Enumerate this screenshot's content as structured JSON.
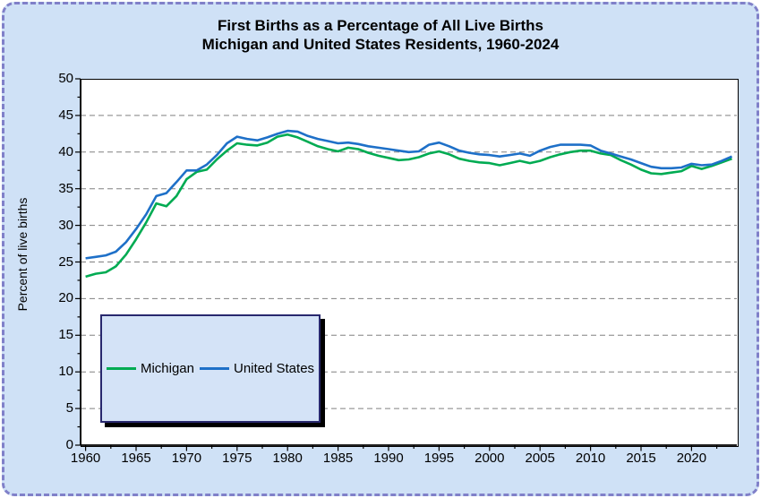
{
  "window": {
    "background_color": "#cfe1f6",
    "frame_border_color": "#8080c9",
    "plot_background": "#ffffff",
    "gridline_color": "#808080"
  },
  "title": {
    "line1": "First Births as a Percentage of All Live Births",
    "line2": "Michigan and United States Residents, 1960-2024"
  },
  "y_axis": {
    "title": "Percent of live births",
    "min": 0,
    "max": 50,
    "tick_step": 5,
    "ticks": [
      0,
      5,
      10,
      15,
      20,
      25,
      30,
      35,
      40,
      45,
      50
    ]
  },
  "x_axis": {
    "range": [
      1960,
      2024
    ],
    "tick_labels": [
      1960,
      1965,
      1970,
      1975,
      1980,
      1985,
      1990,
      1995,
      2000,
      2005,
      2010,
      2015,
      2020
    ]
  },
  "legend": {
    "position": "bottom-left-inside",
    "border_color": "#28286e",
    "shadow_color": "#000000"
  },
  "chart_data": {
    "type": "line",
    "title": "First Births as a Percentage of All Live Births — Michigan and United States Residents, 1960-2024",
    "xlabel": "",
    "ylabel": "Percent of live births",
    "ylim": [
      0,
      50
    ],
    "grid": "horizontal-dashed",
    "legend_position": "bottom-left-inside",
    "x": [
      1960,
      1961,
      1962,
      1963,
      1964,
      1965,
      1966,
      1967,
      1968,
      1969,
      1970,
      1971,
      1972,
      1973,
      1974,
      1975,
      1976,
      1977,
      1978,
      1979,
      1980,
      1981,
      1982,
      1983,
      1984,
      1985,
      1986,
      1987,
      1988,
      1989,
      1990,
      1991,
      1992,
      1993,
      1994,
      1995,
      1996,
      1997,
      1998,
      1999,
      2000,
      2001,
      2002,
      2003,
      2004,
      2005,
      2006,
      2007,
      2008,
      2009,
      2010,
      2011,
      2012,
      2013,
      2014,
      2015,
      2016,
      2017,
      2018,
      2019,
      2020,
      2021,
      2022,
      2023,
      2024
    ],
    "series": [
      {
        "name": "Michigan",
        "color": "#00ab52",
        "values": [
          23.0,
          23.4,
          23.6,
          24.4,
          26.0,
          28.1,
          30.4,
          33.0,
          32.6,
          34.0,
          36.3,
          37.3,
          37.6,
          39.0,
          40.2,
          41.2,
          41.0,
          40.9,
          41.3,
          42.1,
          42.4,
          42.0,
          41.4,
          40.8,
          40.4,
          40.1,
          40.6,
          40.4,
          39.9,
          39.5,
          39.2,
          38.9,
          39.0,
          39.3,
          39.8,
          40.1,
          39.7,
          39.1,
          38.8,
          38.6,
          38.5,
          38.2,
          38.5,
          38.8,
          38.5,
          38.8,
          39.3,
          39.7,
          40.0,
          40.2,
          40.2,
          39.8,
          39.6,
          38.9,
          38.3,
          37.6,
          37.1,
          37.0,
          37.2,
          37.4,
          38.1,
          37.7,
          38.1,
          38.6,
          39.1
        ]
      },
      {
        "name": "United States",
        "color": "#1e70c8",
        "values": [
          25.5,
          25.7,
          25.9,
          26.4,
          27.7,
          29.5,
          31.5,
          34.0,
          34.4,
          35.9,
          37.5,
          37.5,
          38.3,
          39.6,
          41.2,
          42.1,
          41.8,
          41.6,
          42.0,
          42.5,
          42.9,
          42.8,
          42.2,
          41.8,
          41.5,
          41.2,
          41.3,
          41.1,
          40.8,
          40.6,
          40.4,
          40.2,
          40.0,
          40.1,
          41.0,
          41.3,
          40.8,
          40.2,
          39.9,
          39.7,
          39.6,
          39.4,
          39.6,
          39.8,
          39.5,
          40.2,
          40.7,
          41.0,
          41.0,
          41.0,
          40.9,
          40.2,
          39.8,
          39.4,
          39.0,
          38.5,
          38.0,
          37.8,
          37.8,
          37.9,
          38.4,
          38.2,
          38.3,
          38.8,
          39.4
        ]
      }
    ]
  }
}
